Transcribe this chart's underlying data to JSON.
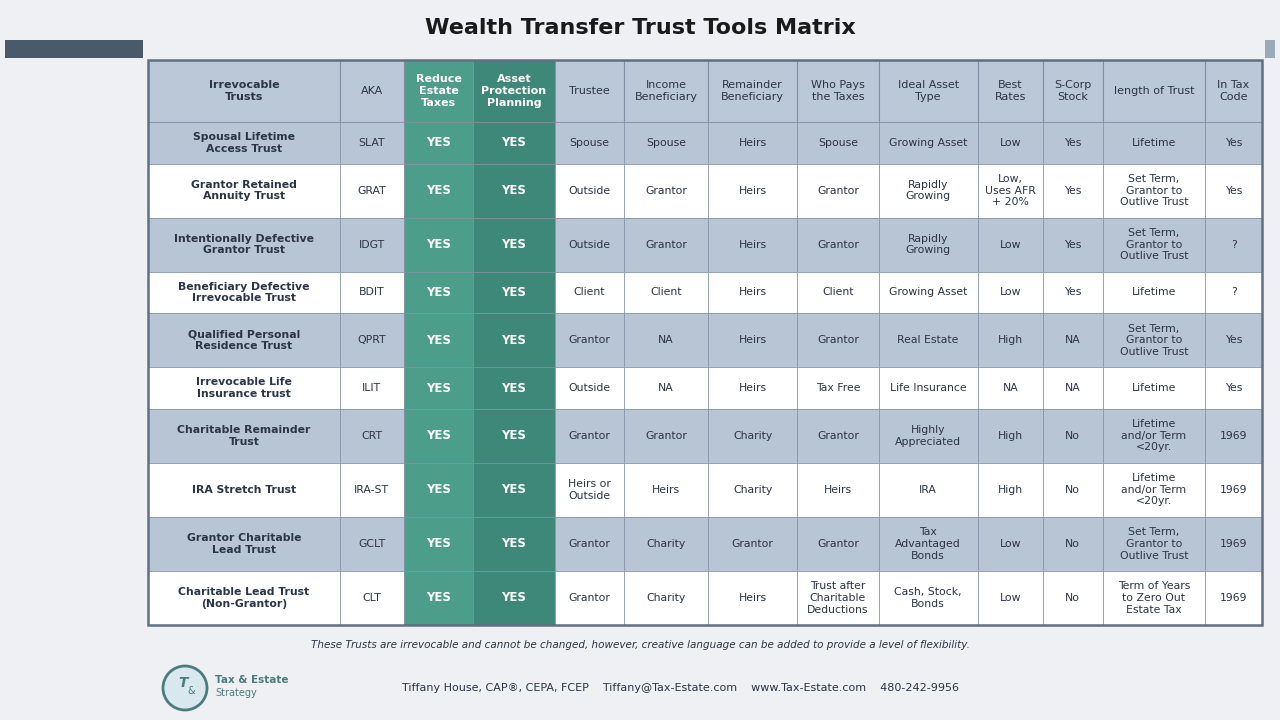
{
  "title": "Wealth Transfer Trust Tools Matrix",
  "title_fontsize": 16,
  "headers": [
    "Irrevocable\nTrusts",
    "AKA",
    "Reduce\nEstate\nTaxes",
    "Asset\nProtection\nPlanning",
    "Trustee",
    "Income\nBeneficiary",
    "Remainder\nBeneficiary",
    "Who Pays\nthe Taxes",
    "Ideal Asset\nType",
    "Best\nRates",
    "S-Corp\nStock",
    "length of Trust",
    "In Tax\nCode"
  ],
  "rows": [
    [
      "Spousal Lifetime\nAccess Trust",
      "SLAT",
      "YES",
      "YES",
      "Spouse",
      "Spouse",
      "Heirs",
      "Spouse",
      "Growing Asset",
      "Low",
      "Yes",
      "Lifetime",
      "Yes"
    ],
    [
      "Grantor Retained\nAnnuity Trust",
      "GRAT",
      "YES",
      "YES",
      "Outside",
      "Grantor",
      "Heirs",
      "Grantor",
      "Rapidly\nGrowing",
      "Low,\nUses AFR\n+ 20%",
      "Yes",
      "Set Term,\nGrantor to\nOutlive Trust",
      "Yes"
    ],
    [
      "Intentionally Defective\nGrantor Trust",
      "IDGT",
      "YES",
      "YES",
      "Outside",
      "Grantor",
      "Heirs",
      "Grantor",
      "Rapidly\nGrowing",
      "Low",
      "Yes",
      "Set Term,\nGrantor to\nOutlive Trust",
      "?"
    ],
    [
      "Beneficiary Defective\nIrrevocable Trust",
      "BDIT",
      "YES",
      "YES",
      "Client",
      "Client",
      "Heirs",
      "Client",
      "Growing Asset",
      "Low",
      "Yes",
      "Lifetime",
      "?"
    ],
    [
      "Qualified Personal\nResidence Trust",
      "QPRT",
      "YES",
      "YES",
      "Grantor",
      "NA",
      "Heirs",
      "Grantor",
      "Real Estate",
      "High",
      "NA",
      "Set Term,\nGrantor to\nOutlive Trust",
      "Yes"
    ],
    [
      "Irrevocable Life\nInsurance trust",
      "ILIT",
      "YES",
      "YES",
      "Outside",
      "NA",
      "Heirs",
      "Tax Free",
      "Life Insurance",
      "NA",
      "NA",
      "Lifetime",
      "Yes"
    ],
    [
      "Charitable Remainder\nTrust",
      "CRT",
      "YES",
      "YES",
      "Grantor",
      "Grantor",
      "Charity",
      "Grantor",
      "Highly\nAppreciated",
      "High",
      "No",
      "Lifetime\nand/or Term\n<20yr.",
      "1969"
    ],
    [
      "IRA Stretch Trust",
      "IRA-ST",
      "YES",
      "YES",
      "Heirs or\nOutside",
      "Heirs",
      "Charity",
      "Heirs",
      "IRA",
      "High",
      "No",
      "Lifetime\nand/or Term\n<20yr.",
      "1969"
    ],
    [
      "Grantor Charitable\nLead Trust",
      "GCLT",
      "YES",
      "YES",
      "Grantor",
      "Charity",
      "Grantor",
      "Grantor",
      "Tax\nAdvantaged\nBonds",
      "Low",
      "No",
      "Set Term,\nGrantor to\nOutlive Trust",
      "1969"
    ],
    [
      "Charitable Lead Trust\n(Non-Grantor)",
      "CLT",
      "YES",
      "YES",
      "Grantor",
      "Charity",
      "Heirs",
      "Trust after\nCharitable\nDeductions",
      "Cash, Stock,\nBonds",
      "Low",
      "No",
      "Term of Years\nto Zero Out\nEstate Tax",
      "1969"
    ]
  ],
  "col_widths_rel": [
    1.55,
    0.52,
    0.56,
    0.66,
    0.56,
    0.68,
    0.72,
    0.66,
    0.8,
    0.53,
    0.48,
    0.83,
    0.46
  ],
  "color_bg": "#eef0f3",
  "color_header_blue": "#bbc8d8",
  "color_teal1": "#4d9d8b",
  "color_teal2": "#3d8878",
  "color_row_blue": "#b8c5d5",
  "color_row_white": "#ffffff",
  "color_text_dark": "#2a3545",
  "color_text_white": "#ffffff",
  "color_border": "#8090a5",
  "color_border_strong": "#607080",
  "footer_note": "These Trusts are irrevocable and cannot be changed, however, creative language can be added to provide a level of flexibility.",
  "footer_contact": "Tiffany House, CAP®, CEPA, FCEP    Tiffany@Tax-Estate.com    www.Tax-Estate.com    480-242-9956",
  "color_deco_left": "#4a5a6a",
  "color_deco_right": "#9aaabb"
}
